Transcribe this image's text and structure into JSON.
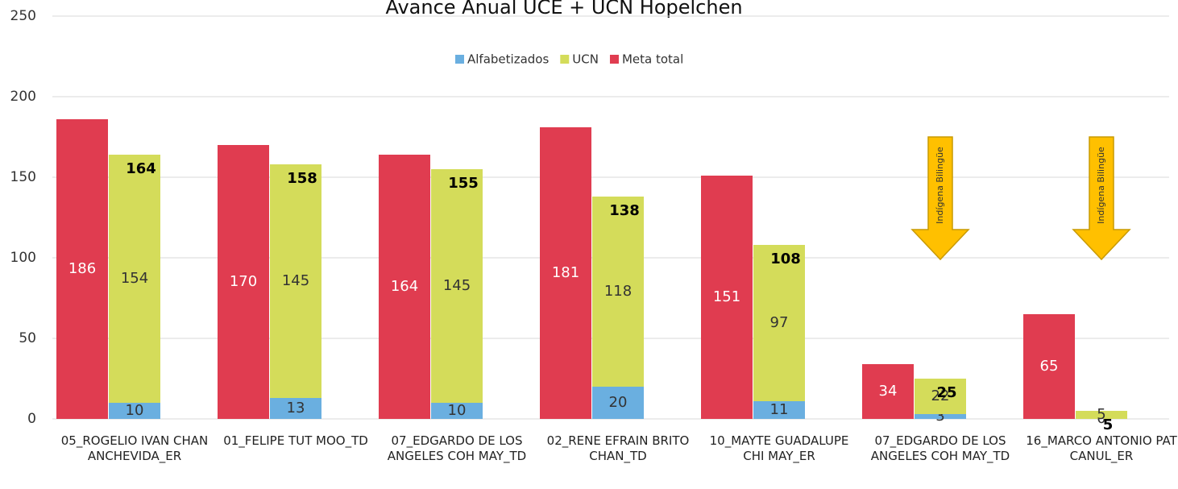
{
  "chart_data": {
    "type": "bar",
    "title": "Avance Anual UCE + UCN Hopelchen",
    "categories": [
      "05_ROGELIO IVAN CHAN ANCHEVIDA_ER",
      "01_FELIPE TUT MOO_TD",
      "07_EDGARDO DE LOS ANGELES COH MAY_TD",
      "02_RENE EFRAIN BRITO CHAN_TD",
      "10_MAYTE GUADALUPE CHI MAY_ER",
      "07_EDGARDO DE LOS ANGELES COH MAY_TD",
      "16_MARCO ANTONIO PAT CANUL_ER"
    ],
    "series": [
      {
        "name": "Alfabetizados",
        "color": "#6aafe0",
        "stack": "a",
        "values": [
          10,
          13,
          10,
          20,
          11,
          3,
          0
        ]
      },
      {
        "name": "UCN",
        "color": "#d4dc5a",
        "stack": "a",
        "values": [
          154,
          145,
          145,
          118,
          97,
          22,
          5
        ]
      },
      {
        "name": "Meta total",
        "color": "#e03c50",
        "stack": "m",
        "values": [
          186,
          170,
          164,
          181,
          151,
          34,
          65
        ]
      }
    ],
    "totals": [
      164,
      158,
      155,
      138,
      108,
      25,
      5
    ],
    "annotations": [
      {
        "text": "Indígena Bilingüe",
        "category_index": 5
      },
      {
        "text": "Indígena Bilingüe",
        "category_index": 6
      }
    ],
    "ylim": [
      0,
      250
    ],
    "yticks": [
      0,
      50,
      100,
      150,
      200,
      250
    ],
    "grid": true,
    "legend": "top"
  }
}
